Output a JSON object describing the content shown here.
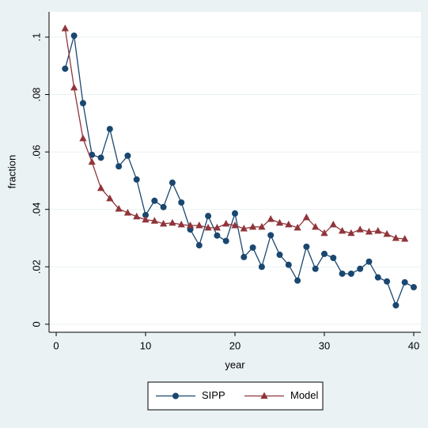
{
  "chart_data": {
    "type": "line",
    "x_label": "year",
    "y_label": "fraction",
    "xlim": [
      -0.8,
      40.8
    ],
    "ylim": [
      -0.0028,
      0.1088
    ],
    "xticks": [
      0,
      10,
      20,
      30,
      40
    ],
    "yticks": [
      0,
      {
        "value": 0.02,
        "label": ".02"
      },
      {
        "value": 0.04,
        "label": ".04"
      },
      {
        "value": 0.06,
        "label": ".06"
      },
      {
        "value": 0.08,
        "label": ".08"
      },
      {
        "value": 0.1,
        "label": ".1"
      }
    ],
    "grid": true,
    "legend": "bottom",
    "series": [
      {
        "name": "SIPP",
        "color": "#1a476f",
        "marker": "circle",
        "x": [
          1,
          2,
          3,
          4,
          5,
          6,
          7,
          8,
          9,
          10,
          11,
          12,
          13,
          14,
          15,
          16,
          17,
          18,
          19,
          20,
          21,
          22,
          23,
          24,
          25,
          26,
          27,
          28,
          29,
          30,
          31,
          32,
          33,
          34,
          35,
          36,
          37,
          38,
          39,
          40
        ],
        "values": [
          0.089,
          0.1005,
          0.077,
          0.059,
          0.058,
          0.068,
          0.055,
          0.0587,
          0.0504,
          0.038,
          0.043,
          0.0408,
          0.0493,
          0.0424,
          0.033,
          0.0275,
          0.0377,
          0.0309,
          0.029,
          0.0386,
          0.0234,
          0.0267,
          0.02,
          0.031,
          0.0242,
          0.0207,
          0.0152,
          0.027,
          0.0193,
          0.0245,
          0.0231,
          0.0176,
          0.0176,
          0.0193,
          0.0218,
          0.0163,
          0.0149,
          0.0066,
          0.0146,
          0.0129
        ]
      },
      {
        "name": "Model",
        "color": "#90353b",
        "marker": "triangle",
        "x": [
          1,
          2,
          3,
          4,
          5,
          6,
          7,
          8,
          9,
          10,
          11,
          12,
          13,
          14,
          15,
          16,
          17,
          18,
          19,
          20,
          21,
          22,
          23,
          24,
          25,
          26,
          27,
          28,
          29,
          30,
          31,
          32,
          33,
          34,
          35,
          36,
          37,
          38,
          39
        ],
        "values": [
          0.103,
          0.0824,
          0.0647,
          0.0565,
          0.0474,
          0.0438,
          0.0402,
          0.0388,
          0.0375,
          0.0364,
          0.036,
          0.035,
          0.0353,
          0.0347,
          0.0344,
          0.0344,
          0.0336,
          0.0336,
          0.035,
          0.0344,
          0.0333,
          0.0339,
          0.0339,
          0.0366,
          0.0353,
          0.0347,
          0.0336,
          0.0372,
          0.0339,
          0.0317,
          0.0347,
          0.0325,
          0.0317,
          0.033,
          0.0322,
          0.0325,
          0.0314,
          0.03,
          0.0297
        ]
      }
    ]
  }
}
